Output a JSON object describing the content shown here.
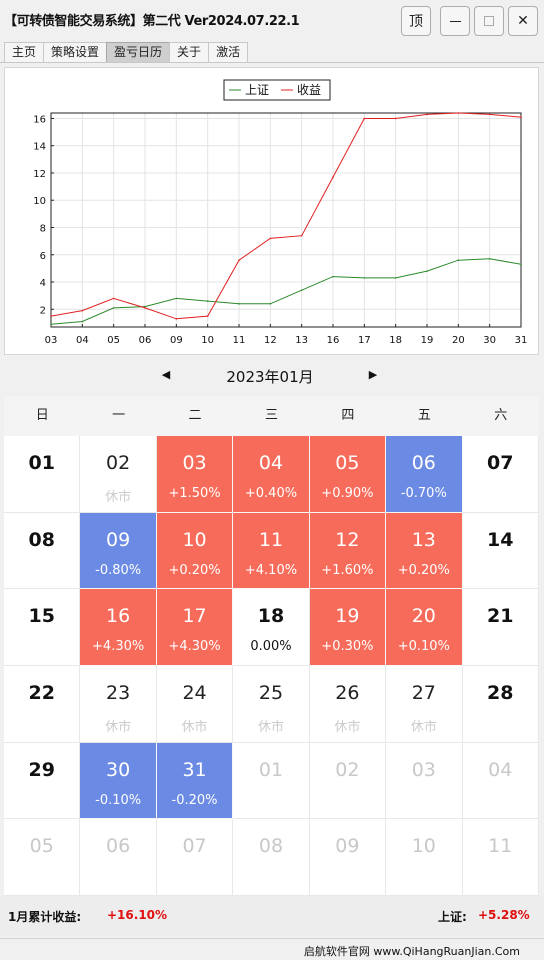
{
  "window": {
    "title": "【可转债智能交易系统】第二代 Ver2024.07.22.1",
    "buttons": {
      "top": "顶",
      "close": "✕"
    }
  },
  "tabs": [
    {
      "label": "主页"
    },
    {
      "label": "策略设置"
    },
    {
      "label": "盈亏日历",
      "active": true
    },
    {
      "label": "关于"
    },
    {
      "label": "激活"
    }
  ],
  "chart_data": {
    "type": "line",
    "categories": [
      "03",
      "04",
      "05",
      "06",
      "09",
      "10",
      "11",
      "12",
      "13",
      "16",
      "17",
      "18",
      "19",
      "20",
      "30",
      "31"
    ],
    "series": [
      {
        "name": "上证",
        "color": "#2a8a2a",
        "values": [
          0.9,
          1.1,
          2.1,
          2.2,
          2.8,
          2.6,
          2.4,
          2.4,
          3.4,
          4.4,
          4.3,
          4.3,
          4.8,
          5.6,
          5.7,
          5.3
        ]
      },
      {
        "name": "收益",
        "color": "#e02020",
        "values": [
          1.5,
          1.9,
          2.8,
          2.1,
          1.3,
          1.5,
          5.6,
          7.2,
          7.4,
          11.7,
          16.0,
          16.0,
          16.3,
          16.4,
          16.3,
          16.1
        ]
      }
    ],
    "yticks": [
      2,
      4,
      6,
      8,
      10,
      12,
      14,
      16
    ],
    "ylim": [
      0.7,
      16.4
    ],
    "legend": "top-center",
    "grid": true
  },
  "calendar": {
    "prev_icon": "triangle-left-icon",
    "next_icon": "triangle-right-icon",
    "prev": "◀",
    "next": "▶",
    "month_label": "2023年01月",
    "weekdays": [
      "日",
      "一",
      "二",
      "三",
      "四",
      "五",
      "六"
    ],
    "closed_text": "休市",
    "colors": {
      "up": "#f76b5a",
      "down": "#6b8ae3"
    },
    "days": [
      {
        "day": "01",
        "state": "weekend"
      },
      {
        "day": "02",
        "state": "closed",
        "text": "休市"
      },
      {
        "day": "03",
        "state": "up",
        "text": "+1.50%"
      },
      {
        "day": "04",
        "state": "up",
        "text": "+0.40%"
      },
      {
        "day": "05",
        "state": "up",
        "text": "+0.90%"
      },
      {
        "day": "06",
        "state": "down",
        "text": "-0.70%"
      },
      {
        "day": "07",
        "state": "weekend"
      },
      {
        "day": "08",
        "state": "weekend"
      },
      {
        "day": "09",
        "state": "down",
        "text": "-0.80%"
      },
      {
        "day": "10",
        "state": "up",
        "text": "+0.20%"
      },
      {
        "day": "11",
        "state": "up",
        "text": "+4.10%"
      },
      {
        "day": "12",
        "state": "up",
        "text": "+1.60%"
      },
      {
        "day": "13",
        "state": "up",
        "text": "+0.20%"
      },
      {
        "day": "14",
        "state": "weekend"
      },
      {
        "day": "15",
        "state": "weekend"
      },
      {
        "day": "16",
        "state": "up",
        "text": "+4.30%"
      },
      {
        "day": "17",
        "state": "up",
        "text": "+4.30%"
      },
      {
        "day": "18",
        "state": "flat",
        "text": "0.00%"
      },
      {
        "day": "19",
        "state": "up",
        "text": "+0.30%"
      },
      {
        "day": "20",
        "state": "up",
        "text": "+0.10%"
      },
      {
        "day": "21",
        "state": "weekend"
      },
      {
        "day": "22",
        "state": "weekend"
      },
      {
        "day": "23",
        "state": "closed",
        "text": "休市"
      },
      {
        "day": "24",
        "state": "closed",
        "text": "休市"
      },
      {
        "day": "25",
        "state": "closed",
        "text": "休市"
      },
      {
        "day": "26",
        "state": "closed",
        "text": "休市"
      },
      {
        "day": "27",
        "state": "closed",
        "text": "休市"
      },
      {
        "day": "28",
        "state": "weekend"
      },
      {
        "day": "29",
        "state": "weekend"
      },
      {
        "day": "30",
        "state": "down",
        "text": "-0.10%"
      },
      {
        "day": "31",
        "state": "down",
        "text": "-0.20%"
      },
      {
        "day": "01",
        "state": "other"
      },
      {
        "day": "02",
        "state": "other"
      },
      {
        "day": "03",
        "state": "other"
      },
      {
        "day": "04",
        "state": "other"
      },
      {
        "day": "05",
        "state": "other"
      },
      {
        "day": "06",
        "state": "other"
      },
      {
        "day": "07",
        "state": "other"
      },
      {
        "day": "08",
        "state": "other"
      },
      {
        "day": "09",
        "state": "other"
      },
      {
        "day": "10",
        "state": "other"
      },
      {
        "day": "11",
        "state": "other"
      }
    ]
  },
  "summary": {
    "month_label": "1月累计收益:",
    "month_value": "+16.10%",
    "index_label": "上证:",
    "index_value": "+5.28%"
  },
  "footer": {
    "text": "启航软件官网   www.QiHangRuanJian.Com"
  }
}
